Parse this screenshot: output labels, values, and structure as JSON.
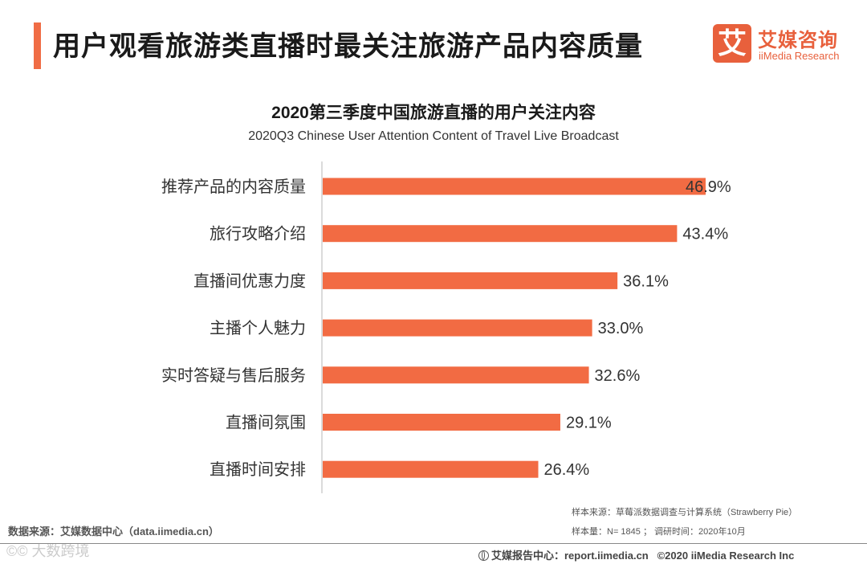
{
  "header": {
    "title": "用户观看旅游类直播时最关注旅游产品内容质量",
    "logo_mark": "艾",
    "logo_cn": "艾媒咨询",
    "logo_en": "iiMedia Research"
  },
  "chart_data": {
    "type": "bar",
    "orientation": "horizontal",
    "title": "2020第三季度中国旅游直播的用户关注内容",
    "subtitle": "2020Q3 Chinese User Attention Content of Travel Live Broadcast",
    "categories": [
      "推荐产品的内容质量",
      "旅行攻略介绍",
      "直播间优惠力度",
      "主播个人魅力",
      "实时答疑与售后服务",
      "直播间氛围",
      "直播时间安排"
    ],
    "values": [
      46.9,
      43.4,
      36.1,
      33.0,
      32.6,
      29.1,
      26.4
    ],
    "labels": [
      "46.9%",
      "43.4%",
      "36.1%",
      "33.0%",
      "32.6%",
      "29.1%",
      "26.4%"
    ],
    "unit": "%",
    "xlim": [
      0,
      50
    ],
    "bar_color": "#f26b43",
    "grid": false,
    "legend": "none"
  },
  "footer": {
    "data_source": "数据来源：艾媒数据中心（data.iimedia.cn）",
    "sample_source": "样本来源：草莓派数据调查与计算系统（Strawberry Pie）",
    "sample_size": "样本量：N= 1845 ； 调研时间：2020年10月",
    "report_center": "艾媒报告中心：report.iimedia.cn",
    "copyright": "©2020  iiMedia Research  Inc",
    "watermark": "©© 大数跨境"
  }
}
